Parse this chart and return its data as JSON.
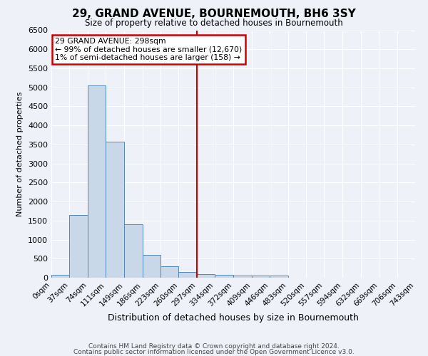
{
  "title": "29, GRAND AVENUE, BOURNEMOUTH, BH6 3SY",
  "subtitle": "Size of property relative to detached houses in Bournemouth",
  "xlabel": "Distribution of detached houses by size in Bournemouth",
  "ylabel": "Number of detached properties",
  "bar_color": "#c8d8e8",
  "bar_edge_color": "#5588bb",
  "background_color": "#eef2f8",
  "grid_color": "#ffffff",
  "vline_x": 297,
  "vline_color": "#cc0000",
  "bin_starts": [
    0,
    37,
    74,
    111,
    149,
    186,
    223,
    260,
    297,
    334,
    372,
    409,
    446,
    483,
    520,
    557,
    594,
    632,
    669,
    706
  ],
  "bin_width": 37,
  "bar_heights": [
    75,
    1650,
    5050,
    3570,
    1400,
    600,
    300,
    150,
    100,
    75,
    60,
    50,
    60,
    0,
    0,
    0,
    0,
    0,
    0,
    0
  ],
  "xtick_labels": [
    "0sqm",
    "37sqm",
    "74sqm",
    "111sqm",
    "149sqm",
    "186sqm",
    "223sqm",
    "260sqm",
    "297sqm",
    "334sqm",
    "372sqm",
    "409sqm",
    "446sqm",
    "483sqm",
    "520sqm",
    "557sqm",
    "594sqm",
    "632sqm",
    "669sqm",
    "706sqm",
    "743sqm"
  ],
  "ylim": [
    0,
    6500
  ],
  "yticks": [
    0,
    500,
    1000,
    1500,
    2000,
    2500,
    3000,
    3500,
    4000,
    4500,
    5000,
    5500,
    6000,
    6500
  ],
  "annotation_text": "29 GRAND AVENUE: 298sqm\n← 99% of detached houses are smaller (12,670)\n1% of semi-detached houses are larger (158) →",
  "annotation_box_color": "#ffffff",
  "annotation_border_color": "#cc0000",
  "footer_line1": "Contains HM Land Registry data © Crown copyright and database right 2024.",
  "footer_line2": "Contains public sector information licensed under the Open Government Licence v3.0."
}
